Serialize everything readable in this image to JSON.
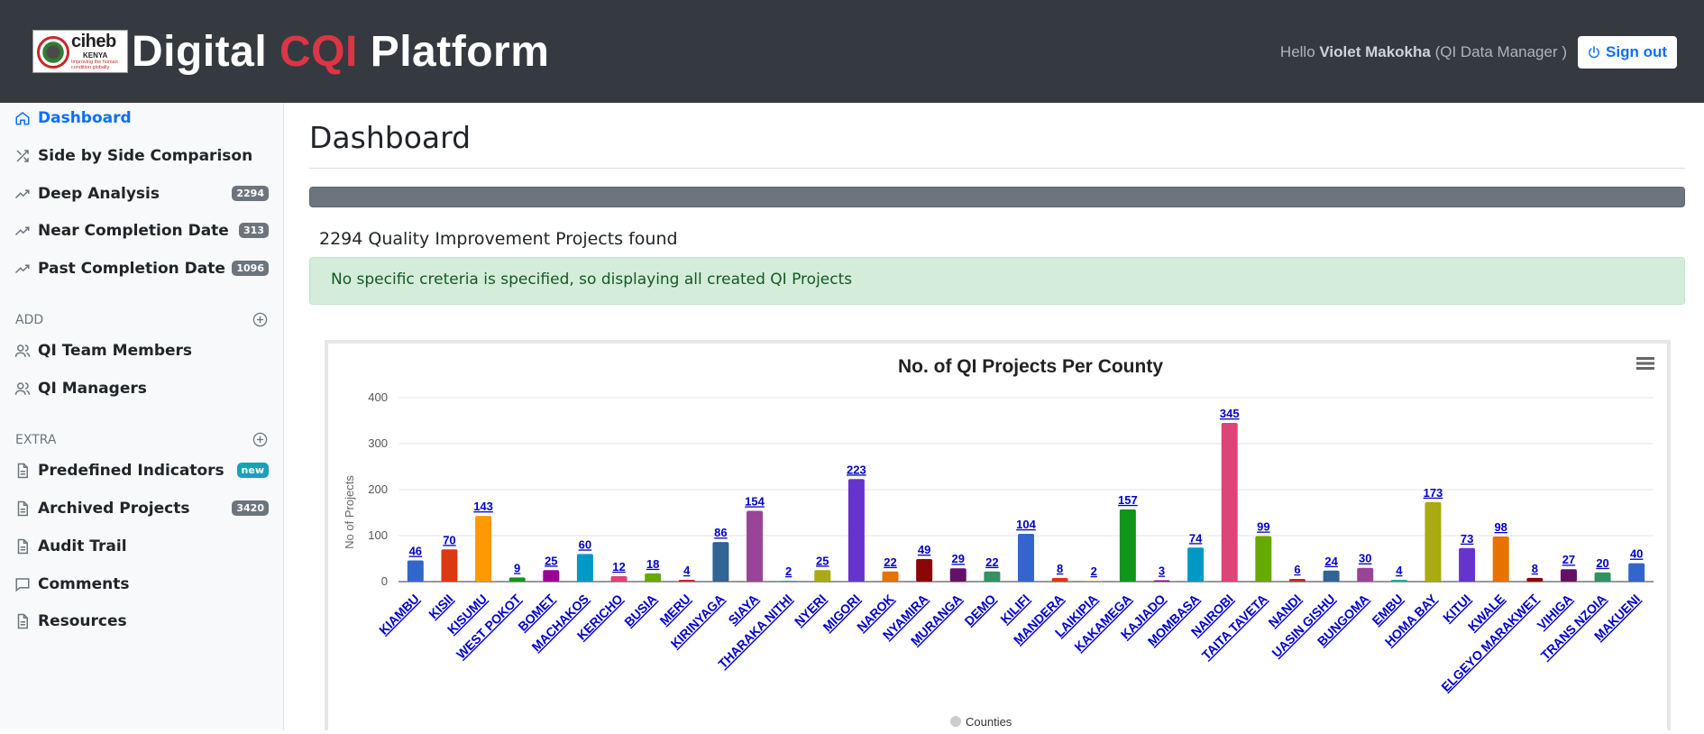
{
  "header": {
    "logo_text": "ciheb",
    "logo_sub": "KENYA",
    "logo_tag": "Improving the human condition globally",
    "brand_pre": "Digital ",
    "brand_accent": "CQI",
    "brand_post": " Platform",
    "hello_prefix": "Hello ",
    "user_name": "Violet Makokha",
    "user_role": " (QI Data Manager )",
    "signout_label": "Sign out"
  },
  "sidebar": {
    "items": [
      {
        "label": "Dashboard",
        "icon": "home-icon"
      },
      {
        "label": "Side by Side Comparison",
        "icon": "shuffle-icon"
      },
      {
        "label": "Deep Analysis",
        "icon": "trend-icon",
        "badge": "2294"
      },
      {
        "label": "Near Completion Date",
        "icon": "trend-icon",
        "badge": "313"
      },
      {
        "label": "Past Completion Date",
        "icon": "trend-icon",
        "badge": "1096"
      }
    ],
    "add_heading": "ADD",
    "add_items": [
      {
        "label": "QI Team Members",
        "icon": "users-icon"
      },
      {
        "label": "QI Managers",
        "icon": "users-icon"
      }
    ],
    "extra_heading": "EXTRA",
    "extra_items": [
      {
        "label": "Predefined Indicators",
        "icon": "file-icon",
        "badge": "new"
      },
      {
        "label": "Archived Projects",
        "icon": "file-icon",
        "badge": "3420"
      },
      {
        "label": "Audit Trail",
        "icon": "file-icon"
      },
      {
        "label": "Comments",
        "icon": "comment-icon"
      },
      {
        "label": "Resources",
        "icon": "file-icon"
      }
    ]
  },
  "main": {
    "title": "Dashboard",
    "found_text": "2294 Quality Improvement Projects found",
    "alert_text": "No specific creteria is specified, so displaying all created QI Projects"
  },
  "colors": {
    "header_bg": "#343a40",
    "accent_red": "#dc3545",
    "link_blue": "#0d6efd",
    "alert_bg": "#d4edda",
    "alert_text": "#155724"
  },
  "chart_data": {
    "type": "bar",
    "title": "No. of QI Projects Per County",
    "ylabel": "No of Projects",
    "xlabel": "",
    "ylim": [
      0,
      400
    ],
    "yticks": [
      0,
      100,
      200,
      300,
      400
    ],
    "legend": "Counties",
    "legend_position": "bottom",
    "grid": true,
    "categories": [
      "KIAMBU",
      "KISII",
      "KISUMU",
      "WEST POKOT",
      "BOMET",
      "MACHAKOS",
      "KERICHO",
      "BUSIA",
      "MERU",
      "KIRINYAGA",
      "SIAYA",
      "THARAKA NITHI",
      "NYERI",
      "MIGORI",
      "NAROK",
      "NYAMIRA",
      "MURANGA",
      "DEMO",
      "KILIFI",
      "MANDERA",
      "LAIKIPIA",
      "KAKAMEGA",
      "KAJIADO",
      "MOMBASA",
      "NAIROBI",
      "TAITA TAVETA",
      "NANDI",
      "UASIN GISHU",
      "BUNGOMA",
      "EMBU",
      "HOMA BAY",
      "KITUI",
      "KWALE",
      "ELGEYO MARAKWET",
      "VIHIGA",
      "TRANS NZOIA",
      "MAKUENI"
    ],
    "values": [
      46,
      70,
      143,
      9,
      25,
      60,
      12,
      18,
      4,
      86,
      154,
      2,
      25,
      223,
      22,
      49,
      29,
      22,
      104,
      8,
      2,
      157,
      3,
      74,
      345,
      99,
      6,
      24,
      30,
      4,
      173,
      73,
      98,
      8,
      27,
      20,
      40
    ],
    "bar_colors": [
      "#3366cc",
      "#dc3912",
      "#ff9900",
      "#109618",
      "#990099",
      "#0099c6",
      "#dd4477",
      "#66aa00",
      "#b82e2e",
      "#316395",
      "#994499",
      "#22aa99",
      "#aaaa11",
      "#6633cc",
      "#e67300",
      "#8b0707",
      "#651067",
      "#329262",
      "#3366cc",
      "#dc3912",
      "#ff9900",
      "#109618",
      "#990099",
      "#0099c6",
      "#dd4477",
      "#66aa00",
      "#b82e2e",
      "#316395",
      "#994499",
      "#22aa99",
      "#aaaa11",
      "#6633cc",
      "#e67300",
      "#8b0707",
      "#651067",
      "#329262",
      "#3366cc"
    ]
  }
}
